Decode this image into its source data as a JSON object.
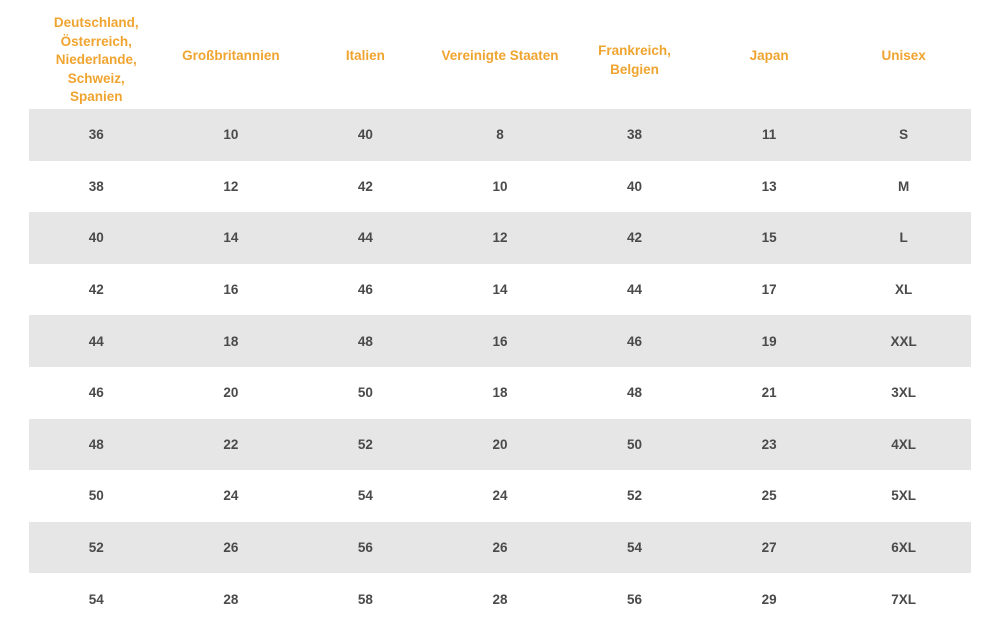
{
  "table": {
    "headers": [
      "Deutschland,\nÖsterreich,\nNiederlande,\nSchweiz,\nSpanien",
      "Großbritannien",
      "Italien",
      "Vereinigte Staaten",
      "Frankreich,\nBelgien",
      "Japan",
      "Unisex"
    ],
    "rows": [
      [
        "36",
        "10",
        "40",
        "8",
        "38",
        "11",
        "S"
      ],
      [
        "38",
        "12",
        "42",
        "10",
        "40",
        "13",
        "M"
      ],
      [
        "40",
        "14",
        "44",
        "12",
        "42",
        "15",
        "L"
      ],
      [
        "42",
        "16",
        "46",
        "14",
        "44",
        "17",
        "XL"
      ],
      [
        "44",
        "18",
        "48",
        "16",
        "46",
        "19",
        "XXL"
      ],
      [
        "46",
        "20",
        "50",
        "18",
        "48",
        "21",
        "3XL"
      ],
      [
        "48",
        "22",
        "52",
        "20",
        "50",
        "23",
        "4XL"
      ],
      [
        "50",
        "24",
        "54",
        "24",
        "52",
        "25",
        "5XL"
      ],
      [
        "52",
        "26",
        "56",
        "26",
        "54",
        "27",
        "6XL"
      ],
      [
        "54",
        "28",
        "58",
        "28",
        "56",
        "29",
        "7XL"
      ]
    ]
  },
  "colors": {
    "header_text": "#f0a430",
    "cell_text": "#4a4a4a",
    "row_shade": "#e6e6e6",
    "background": "#ffffff"
  }
}
